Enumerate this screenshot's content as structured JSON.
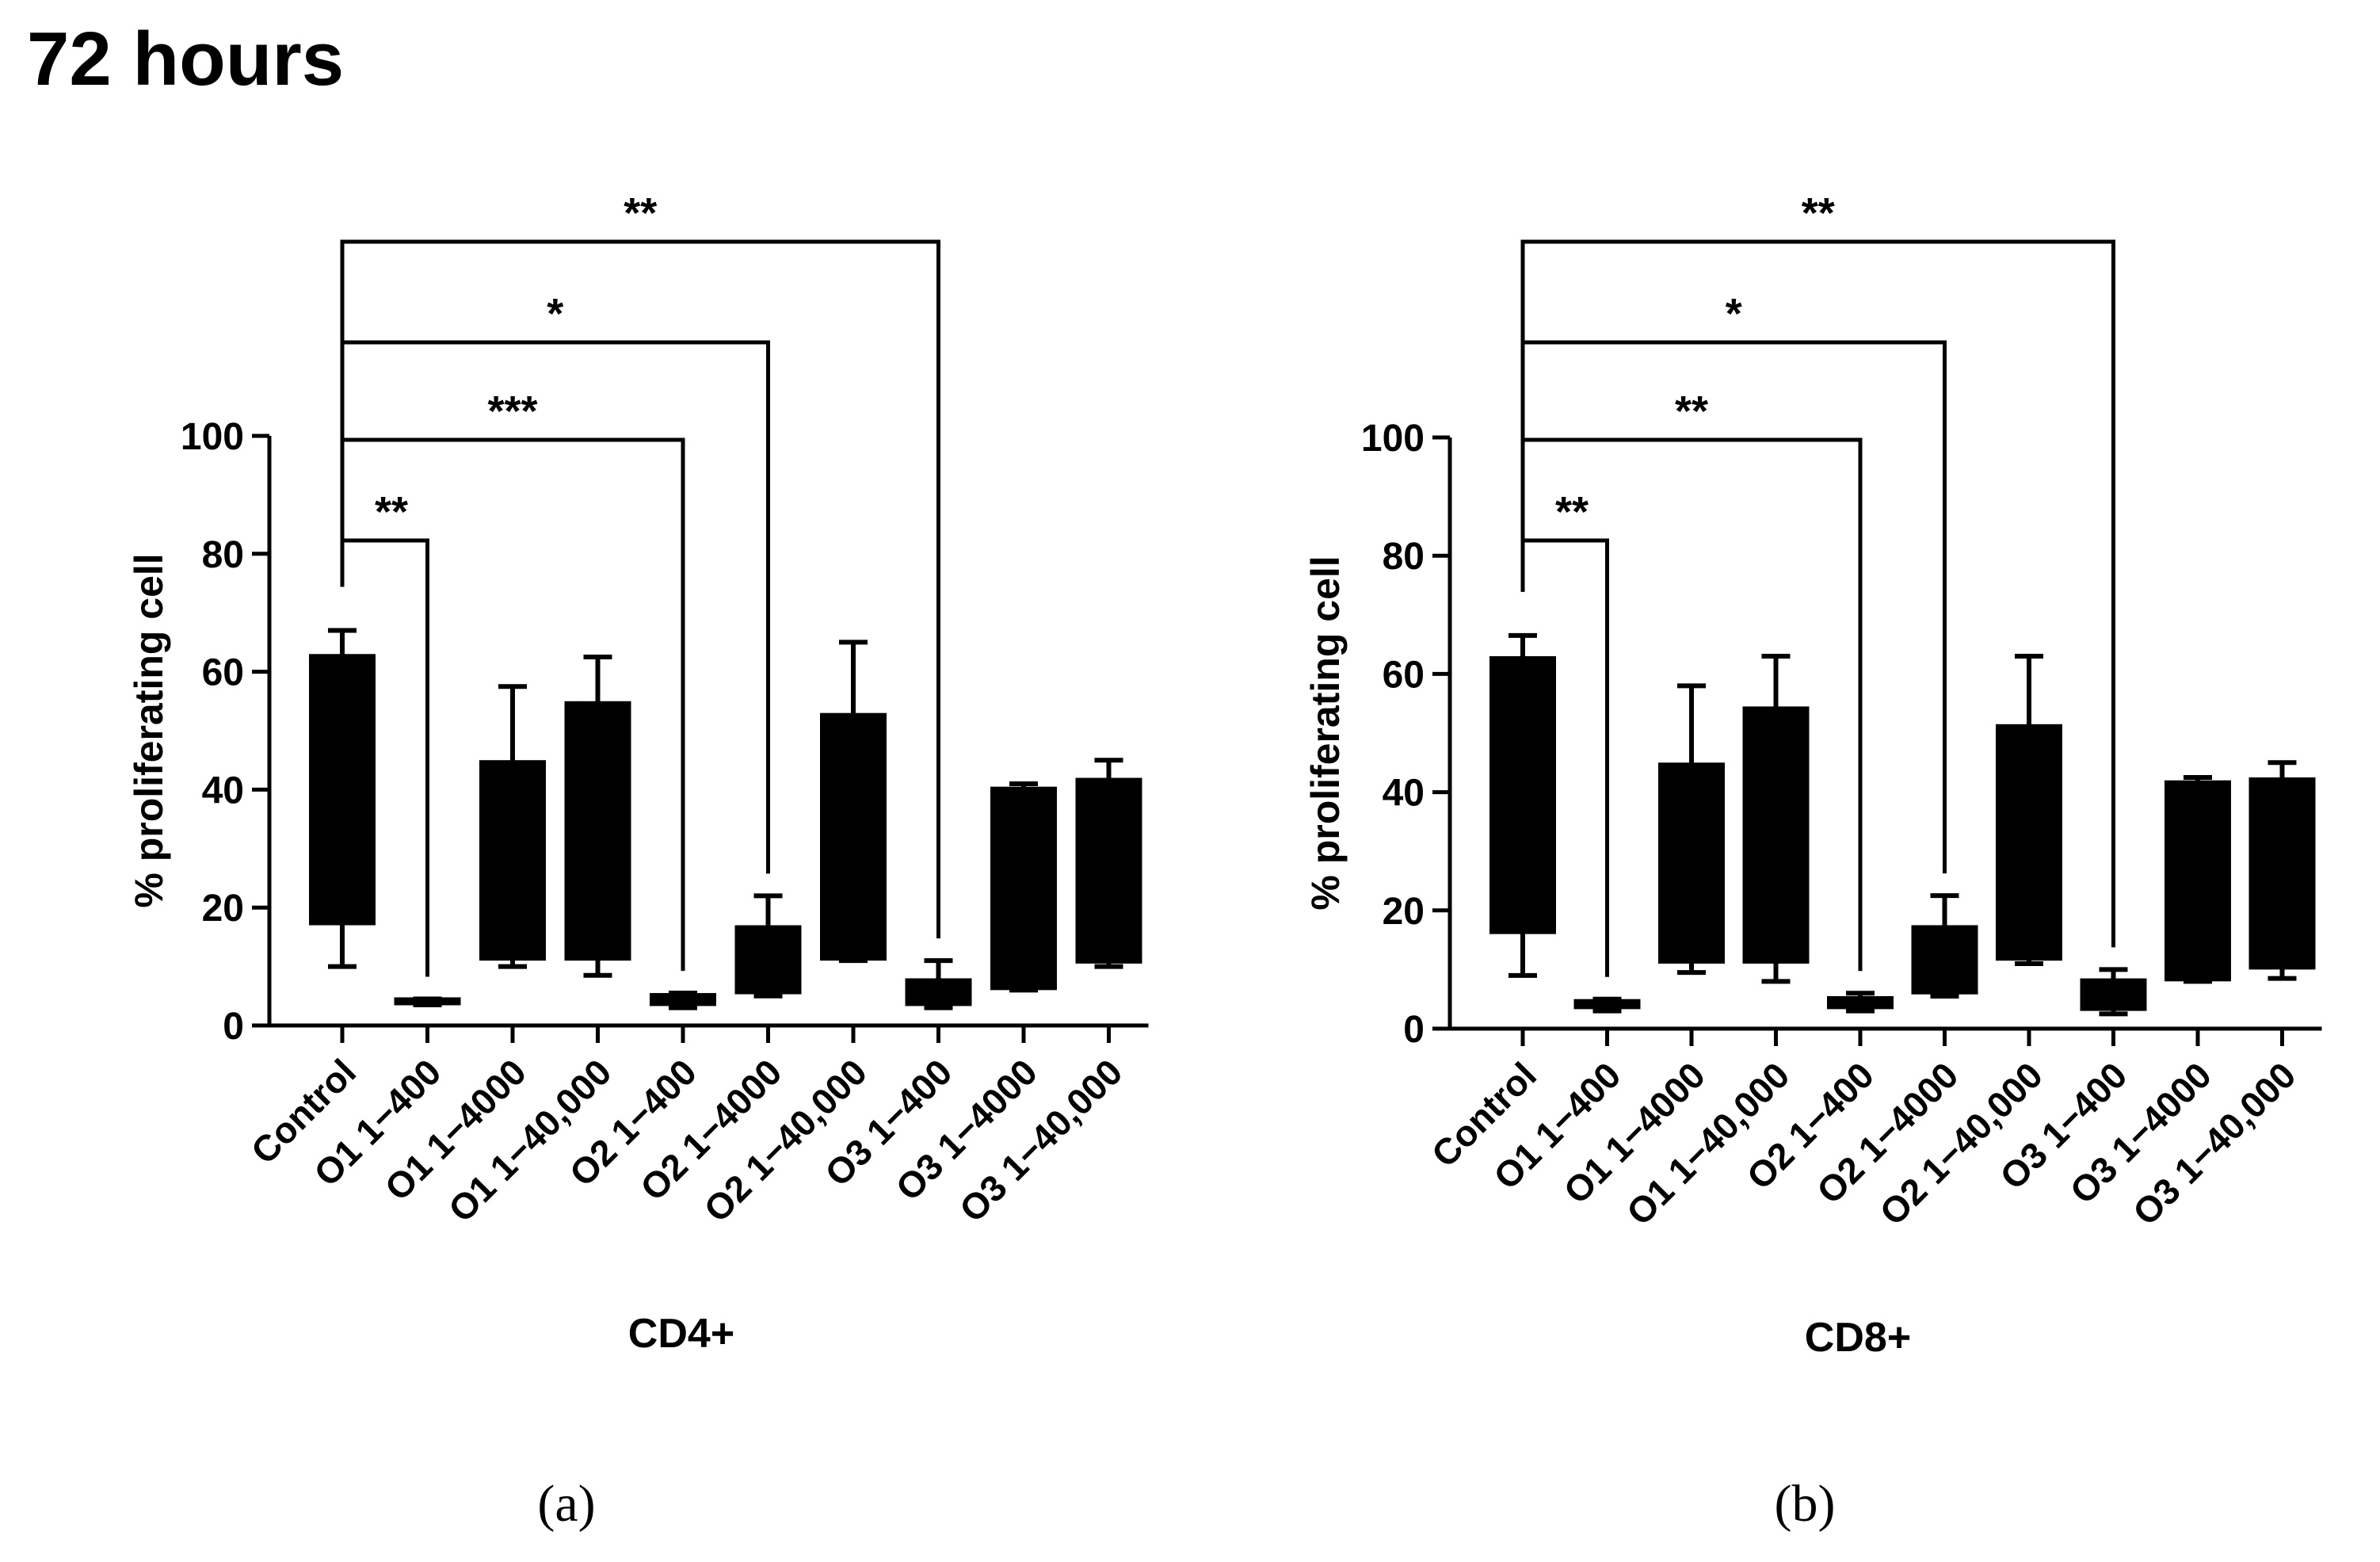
{
  "page_title": "72 hours",
  "chart_data": [
    {
      "type": "bar",
      "subtype": "floating-bar-with-whiskers",
      "panel_label": "(a)",
      "title": "",
      "xlabel": "CD4+",
      "ylabel": "% proliferating cell",
      "ylim": [
        0,
        100
      ],
      "yticks": [
        0,
        20,
        40,
        60,
        80,
        100
      ],
      "categories": [
        "Control",
        "O1 1−400",
        "O1 1−4000",
        "O1 1−40,000",
        "O2 1−400",
        "O2 1−4000",
        "O2 1−40,000",
        "O3 1−400",
        "O3 1−4000",
        "O3 1−40,000"
      ],
      "series": [
        {
          "name": "min",
          "values": [
            10,
            3.5,
            10,
            8.5,
            3,
            5,
            11,
            3,
            6,
            10
          ]
        },
        {
          "name": "q1",
          "values": [
            17,
            3.7,
            11,
            11,
            3.3,
            5.3,
            11,
            3.3,
            6,
            10.5
          ]
        },
        {
          "name": "q3",
          "values": [
            63,
            4.5,
            45,
            55,
            5.5,
            17,
            53,
            8,
            40.5,
            42
          ]
        },
        {
          "name": "max",
          "values": [
            67,
            4.5,
            57.5,
            62.5,
            5.5,
            22,
            65,
            11,
            41,
            45
          ]
        }
      ],
      "significance": [
        {
          "from": "Control",
          "to": "O1 1−400",
          "label": "**"
        },
        {
          "from": "Control",
          "to": "O2 1−400",
          "label": "***"
        },
        {
          "from": "Control",
          "to": "O2 1−4000",
          "label": "*"
        },
        {
          "from": "Control",
          "to": "O3 1−400",
          "label": "**"
        }
      ]
    },
    {
      "type": "bar",
      "subtype": "floating-bar-with-whiskers",
      "panel_label": "(b)",
      "title": "",
      "xlabel": "CD8+",
      "ylabel": "% proliferating cell",
      "ylim": [
        0,
        100
      ],
      "yticks": [
        0,
        20,
        40,
        60,
        80,
        100
      ],
      "categories": [
        "Control",
        "O1 1−400",
        "O1 1−4000",
        "O1 1−40,000",
        "O2 1−400",
        "O2 1−4000",
        "O2 1−40,000",
        "O3 1−400",
        "O3 1−4000",
        "O3 1−40,000"
      ],
      "series": [
        {
          "name": "min",
          "values": [
            9,
            3,
            9.5,
            8,
            3,
            5.5,
            11,
            2.5,
            8,
            8.5
          ]
        },
        {
          "name": "q1",
          "values": [
            16,
            3.3,
            11,
            11,
            3.3,
            5.8,
            11.5,
            3,
            8,
            10
          ]
        },
        {
          "name": "q3",
          "values": [
            63,
            5,
            45,
            54.5,
            5.5,
            17.5,
            51.5,
            8.5,
            42,
            42.5
          ]
        },
        {
          "name": "max",
          "values": [
            66.5,
            5,
            58,
            63,
            6,
            22.5,
            63,
            10,
            42.5,
            45
          ]
        }
      ],
      "significance": [
        {
          "from": "Control",
          "to": "O1 1−400",
          "label": "**"
        },
        {
          "from": "Control",
          "to": "O2 1−400",
          "label": "**"
        },
        {
          "from": "Control",
          "to": "O2 1−4000",
          "label": "*"
        },
        {
          "from": "Control",
          "to": "O3 1−400",
          "label": "**"
        }
      ]
    }
  ]
}
